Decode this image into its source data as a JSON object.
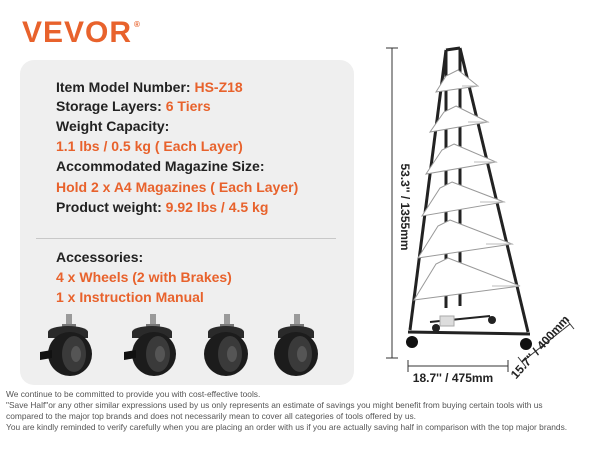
{
  "brand": {
    "logo_text": "VEVOR",
    "logo_mark": "®",
    "accent_color": "#e8622c"
  },
  "specs": [
    {
      "key": "Item Model Number: ",
      "value": "HS-Z18"
    },
    {
      "key": "Storage Layers: ",
      "value": "6 Tiers"
    },
    {
      "key": "Weight Capacity:",
      "value": ""
    },
    {
      "key": "",
      "value": "1.1 lbs / 0.5 kg ( Each Layer)"
    },
    {
      "key": "Accommodated Magazine Size:",
      "value": ""
    },
    {
      "key": "",
      "value": "Hold 2 x A4 Magazines ( Each Layer)"
    },
    {
      "key": "Product weight: ",
      "value": "9.92 lbs / 4.5 kg"
    }
  ],
  "accessories": {
    "title": "Accessories:",
    "items": [
      "4 x Wheels (2 with Brakes)",
      "1 x Instruction Manual"
    ]
  },
  "dimensions": {
    "height": "53.3'' / 1355mm",
    "width": "18.7'' / 475mm",
    "depth": "15.7'' / 400mm"
  },
  "disclaimer": [
    "We continue to be committed to provide you with cost-effective tools.",
    "\"Save Half\"or any other similar expressions used by us only represents an estimate of savings you might benefit from buying certain tools with us",
    "compared to the major top brands and does not necessarily mean to cover all categories of tools offered by us.",
    "You are kindly reminded to verify carefully when you are placing an order with us if you are actually saving half in comparison with the top major brands."
  ]
}
